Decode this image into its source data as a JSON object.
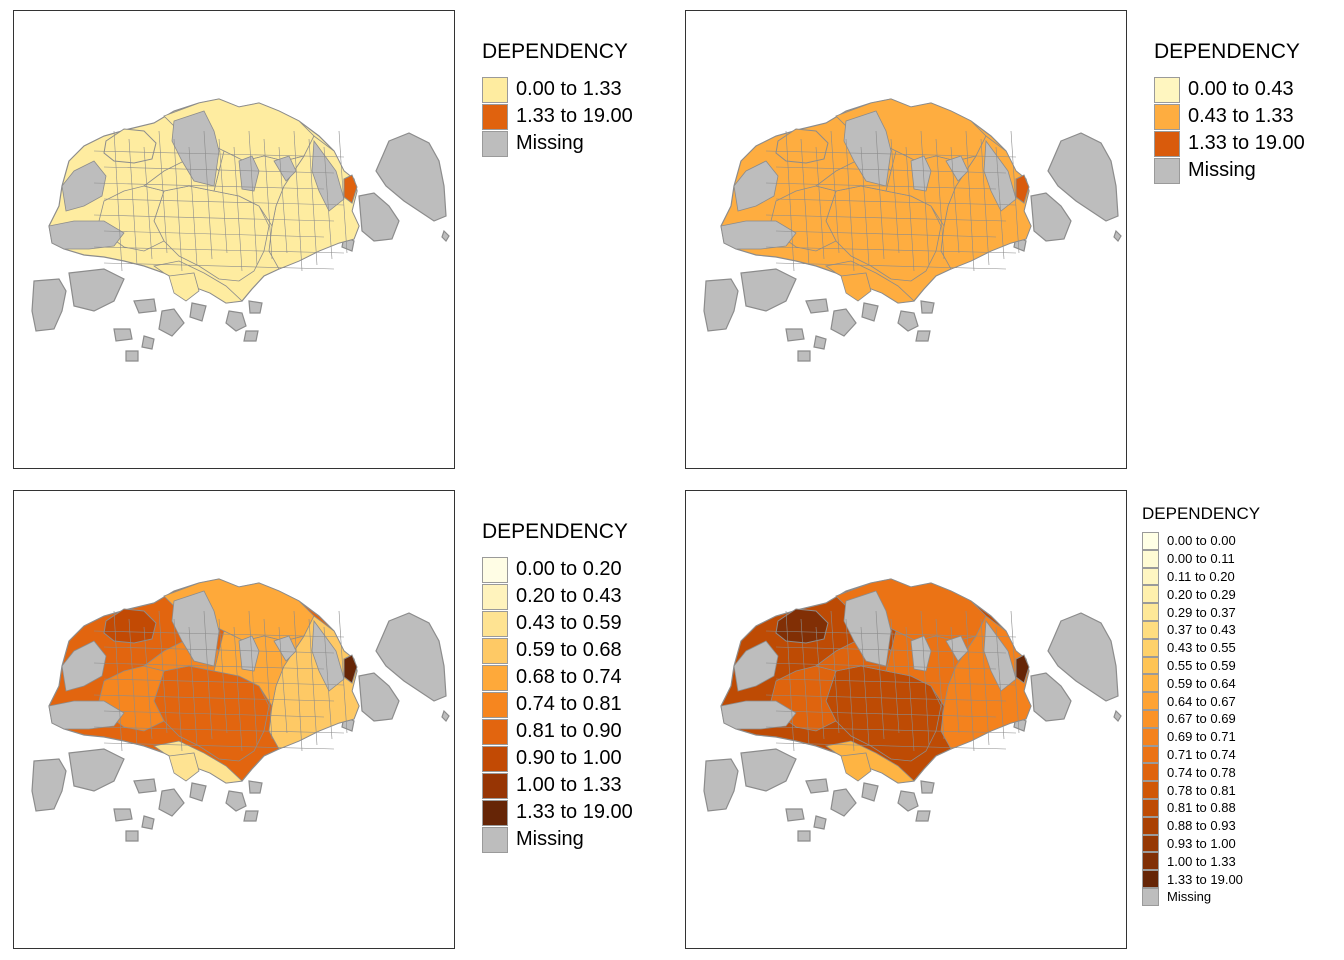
{
  "colors": {
    "missing": "#bdbdbd",
    "border": "#8c8c8c",
    "scale": [
      "#fffde5",
      "#fff7c4",
      "#feec9f",
      "#fed478",
      "#febb4f",
      "#fe9a2c",
      "#f3791b",
      "#e05f0e",
      "#c44c04",
      "#a53c03",
      "#873005",
      "#662506"
    ]
  },
  "panels": [
    {
      "legend": {
        "title": "DEPENDENCY",
        "items": [
          {
            "label": "0.00 to 1.33",
            "color": "#feeca0"
          },
          {
            "label": "1.33 to 19.00",
            "color": "#e0620e"
          },
          {
            "label": "Missing",
            "color": "#bdbdbd"
          }
        ]
      },
      "fill": {
        "north": 0,
        "center": 0,
        "east": 0,
        "south": 0,
        "west": 0,
        "hot": 1
      },
      "palette": [
        "#feeca0",
        "#e0620e"
      ]
    },
    {
      "legend": {
        "title": "DEPENDENCY",
        "items": [
          {
            "label": "0.00 to 0.43",
            "color": "#fff6c0"
          },
          {
            "label": "0.43 to 1.33",
            "color": "#fead40"
          },
          {
            "label": "1.33 to 19.00",
            "color": "#d95b0c"
          },
          {
            "label": "Missing",
            "color": "#bdbdbd"
          }
        ]
      },
      "fill": {
        "north": 1,
        "center": 1,
        "east": 1,
        "south": 1,
        "west": 1,
        "hot": 2
      },
      "palette": [
        "#fff6c0",
        "#fead40",
        "#d95b0c"
      ]
    },
    {
      "legend": {
        "title": "DEPENDENCY",
        "items": [
          {
            "label": "0.00 to 0.20",
            "color": "#fffde5"
          },
          {
            "label": "0.20 to 0.43",
            "color": "#fff3bd"
          },
          {
            "label": "0.43 to 0.59",
            "color": "#fee392"
          },
          {
            "label": "0.59 to 0.68",
            "color": "#fec965"
          },
          {
            "label": "0.68 to 0.74",
            "color": "#fea93a"
          },
          {
            "label": "0.74 to 0.81",
            "color": "#f6861f"
          },
          {
            "label": "0.81 to 0.90",
            "color": "#e2650f"
          },
          {
            "label": "0.90 to 1.00",
            "color": "#c24a04"
          },
          {
            "label": "1.00 to 1.33",
            "color": "#973504"
          },
          {
            "label": "1.33 to 19.00",
            "color": "#662506"
          },
          {
            "label": "Missing",
            "color": "#bdbdbd"
          }
        ]
      },
      "fill": {
        "north": 4,
        "center": 6,
        "east": 3,
        "south": 2,
        "west": 5,
        "hot": 9,
        "nw": 7
      },
      "palette": [
        "#fffde5",
        "#fff3bd",
        "#fee392",
        "#fec965",
        "#fea93a",
        "#f6861f",
        "#e2650f",
        "#c24a04",
        "#973504",
        "#662506"
      ]
    },
    {
      "legend": {
        "title": "DEPENDENCY",
        "items": [
          {
            "label": "0.00 to 0.00",
            "color": "#ffffe5"
          },
          {
            "label": "0.00 to 0.11",
            "color": "#fffbd4"
          },
          {
            "label": "0.11 to 0.20",
            "color": "#fff6c2"
          },
          {
            "label": "0.20 to 0.29",
            "color": "#fff0ad"
          },
          {
            "label": "0.29 to 0.37",
            "color": "#fee898"
          },
          {
            "label": "0.37 to 0.43",
            "color": "#fedd80"
          },
          {
            "label": "0.43 to 0.55",
            "color": "#fed16a"
          },
          {
            "label": "0.55 to 0.59",
            "color": "#fec455"
          },
          {
            "label": "0.59 to 0.64",
            "color": "#feb443"
          },
          {
            "label": "0.64 to 0.67",
            "color": "#fea334"
          },
          {
            "label": "0.67 to 0.69",
            "color": "#fb9327"
          },
          {
            "label": "0.69 to 0.71",
            "color": "#f4821d"
          },
          {
            "label": "0.71 to 0.74",
            "color": "#eb7315"
          },
          {
            "label": "0.74 to 0.78",
            "color": "#df640e"
          },
          {
            "label": "0.78 to 0.81",
            "color": "#d05707"
          },
          {
            "label": "0.81 to 0.88",
            "color": "#be4b04"
          },
          {
            "label": "0.88 to 0.93",
            "color": "#aa4103"
          },
          {
            "label": "0.93 to 1.00",
            "color": "#963804"
          },
          {
            "label": "1.00 to 1.33",
            "color": "#812f05"
          },
          {
            "label": "1.33 to 19.00",
            "color": "#662506"
          },
          {
            "label": "Missing",
            "color": "#bdbdbd"
          }
        ]
      },
      "fill": {
        "north": 12,
        "center": 15,
        "east": 11,
        "south": 8,
        "west": 13,
        "hot": 19,
        "nw": 18
      },
      "palette": [
        "#ffffe5",
        "#fffbd4",
        "#fff6c2",
        "#fff0ad",
        "#fee898",
        "#fedd80",
        "#fed16a",
        "#fec455",
        "#feb443",
        "#fea334",
        "#fb9327",
        "#f4821d",
        "#eb7315",
        "#df640e",
        "#d05707",
        "#be4b04",
        "#aa4103",
        "#963804",
        "#812f05",
        "#662506"
      ]
    }
  ]
}
